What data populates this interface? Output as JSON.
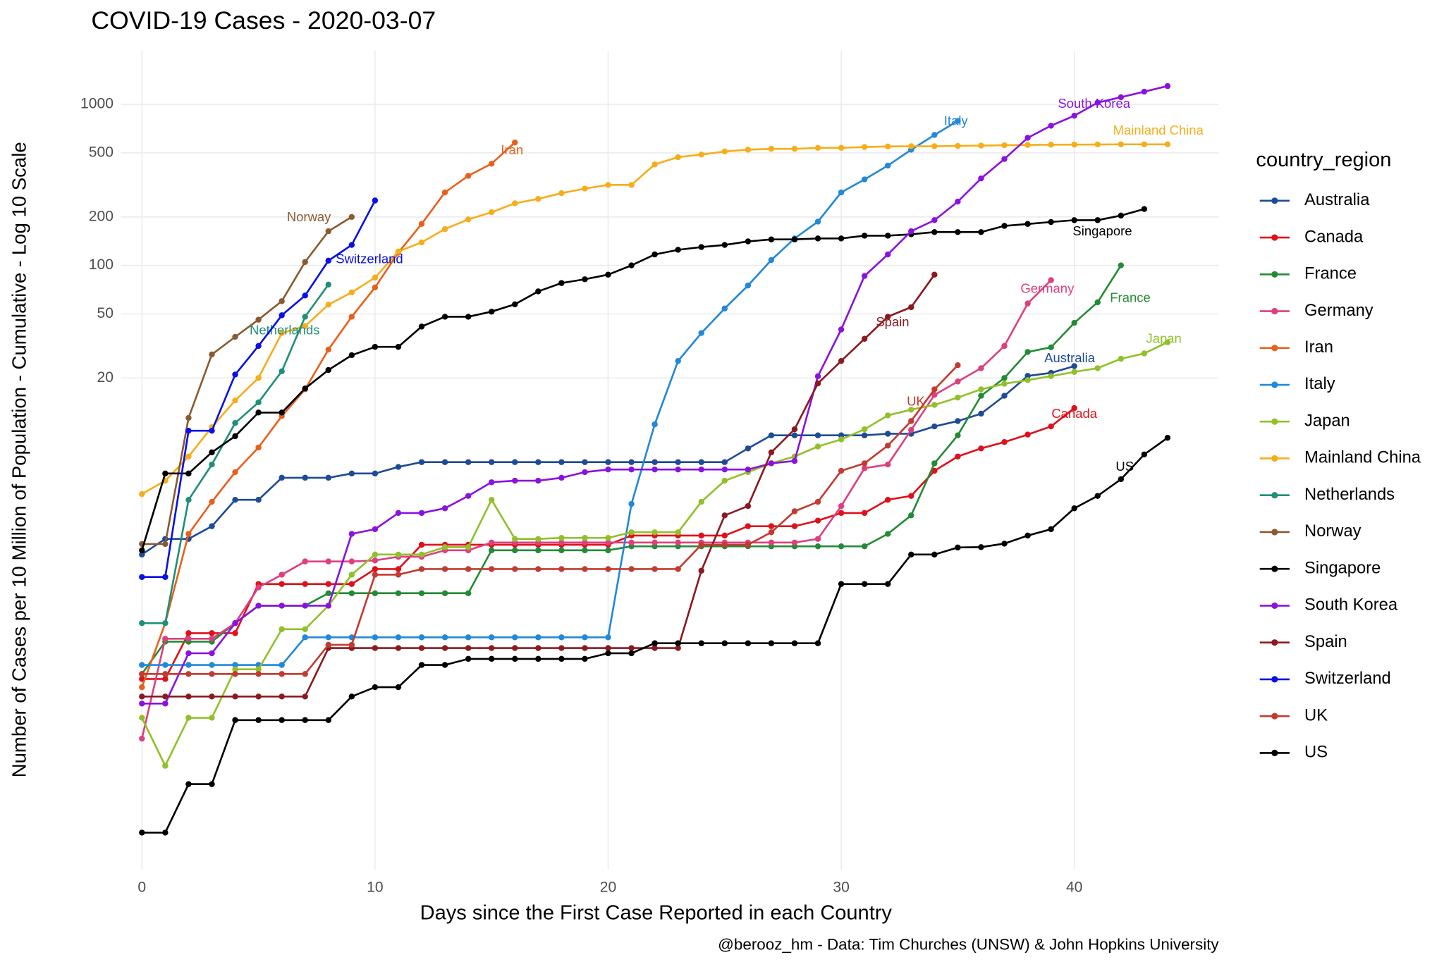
{
  "chart_data": {
    "type": "line",
    "title": "COVID-19 Cases - 2020-03-07",
    "x_label": "Days since the First Case Reported in each Country",
    "y_label": "Number of Cases per 10 Million of Population - Cumulative - Log 10 Scale",
    "caption": "@berooz_hm - Data: Tim Churches (UNSW) & John Hopkins University",
    "legend_title": "country_region",
    "legend": "right",
    "grid": true,
    "y_log": true,
    "xlim": [
      -0.9,
      46.2
    ],
    "xticks": [
      0,
      10,
      20,
      30,
      40
    ],
    "ylim": [
      0.0177,
      2150
    ],
    "yticks": [
      20,
      50,
      100,
      200,
      500,
      1000
    ],
    "x": [
      0,
      1,
      2,
      3,
      4,
      5,
      6,
      7,
      8,
      9,
      10,
      11,
      12,
      13,
      14,
      15,
      16,
      17,
      18,
      19,
      20,
      21,
      22,
      23,
      24,
      25,
      26,
      27,
      28,
      29,
      30,
      31,
      32,
      33,
      34,
      35,
      36,
      37,
      38,
      39,
      40,
      41,
      42,
      43,
      44
    ],
    "series": [
      {
        "name": "Australia",
        "color": "#1d4b96",
        "values": [
          1.6,
          2.0,
          2.0,
          2.4,
          3.5,
          3.5,
          4.8,
          4.8,
          4.8,
          5.1,
          5.1,
          5.6,
          6.0,
          6.0,
          6.0,
          6.0,
          6.0,
          6.0,
          6.0,
          6.0,
          6.0,
          6.0,
          6.0,
          6.0,
          6.0,
          6.0,
          7.3,
          8.8,
          8.8,
          8.8,
          8.8,
          8.8,
          9.0,
          9.0,
          10,
          10.8,
          12,
          15.5,
          20.6,
          21.5,
          23.7,
          null,
          null,
          null,
          null
        ]
      },
      {
        "name": "Canada",
        "color": "#e0101a",
        "values": [
          0.27,
          0.27,
          0.52,
          0.52,
          0.52,
          1.05,
          1.05,
          1.05,
          1.05,
          1.05,
          1.3,
          1.3,
          1.84,
          1.84,
          1.84,
          1.84,
          1.84,
          1.84,
          1.84,
          1.84,
          1.84,
          2.1,
          2.1,
          2.1,
          2.1,
          2.1,
          2.4,
          2.4,
          2.4,
          2.6,
          2.9,
          2.9,
          3.5,
          3.7,
          5.3,
          6.5,
          7.3,
          8.0,
          8.9,
          10,
          13,
          null,
          null,
          null,
          null
        ]
      },
      {
        "name": "France",
        "color": "#238b35",
        "values": [
          0.29,
          0.46,
          0.46,
          0.46,
          0.6,
          0.77,
          0.77,
          0.77,
          0.92,
          0.92,
          0.92,
          0.92,
          0.92,
          0.92,
          0.92,
          1.7,
          1.7,
          1.7,
          1.7,
          1.7,
          1.7,
          1.8,
          1.8,
          1.8,
          1.8,
          1.8,
          1.8,
          1.8,
          1.8,
          1.8,
          1.8,
          1.8,
          2.15,
          2.8,
          5.9,
          8.8,
          15.5,
          20,
          29,
          31,
          44,
          59,
          100,
          null,
          null
        ]
      },
      {
        "name": "Germany",
        "color": "#dd3f7f",
        "values": [
          0.115,
          0.48,
          0.48,
          0.48,
          0.6,
          1.0,
          1.2,
          1.45,
          1.45,
          1.45,
          1.47,
          1.55,
          1.55,
          1.7,
          1.7,
          1.9,
          1.9,
          1.9,
          1.9,
          1.9,
          1.9,
          1.9,
          1.9,
          1.9,
          1.9,
          1.9,
          1.9,
          1.9,
          1.9,
          2.0,
          3.2,
          5.5,
          5.8,
          9.5,
          15.7,
          19,
          23,
          31.6,
          58,
          81,
          null,
          null,
          null,
          null,
          null
        ]
      },
      {
        "name": "Iran",
        "color": "#e8601c",
        "values": [
          0.24,
          0.6,
          2.15,
          3.4,
          5.2,
          7.4,
          11.6,
          17,
          30,
          48,
          73,
          120,
          181,
          284,
          360,
          428,
          580,
          null,
          null,
          null,
          null,
          null,
          null,
          null,
          null,
          null,
          null,
          null,
          null,
          null,
          null,
          null,
          null,
          null,
          null,
          null,
          null,
          null,
          null,
          null,
          null,
          null,
          null,
          null,
          null
        ]
      },
      {
        "name": "Italy",
        "color": "#2288d8",
        "values": [
          0.33,
          0.33,
          0.33,
          0.33,
          0.33,
          0.33,
          0.33,
          0.49,
          0.49,
          0.49,
          0.49,
          0.49,
          0.49,
          0.49,
          0.49,
          0.49,
          0.49,
          0.49,
          0.49,
          0.49,
          0.49,
          3.3,
          10.3,
          25.5,
          38,
          54,
          75,
          108,
          147,
          187,
          284,
          342,
          417,
          523,
          646,
          790,
          null,
          null,
          null,
          null,
          null,
          null,
          null,
          null,
          null
        ]
      },
      {
        "name": "Japan",
        "color": "#92c02a",
        "values": [
          0.155,
          0.078,
          0.155,
          0.155,
          0.31,
          0.31,
          0.55,
          0.55,
          0.77,
          1.2,
          1.6,
          1.6,
          1.6,
          1.78,
          1.78,
          3.5,
          2.0,
          2.0,
          2.03,
          2.03,
          2.03,
          2.2,
          2.2,
          2.2,
          3.4,
          4.6,
          5.2,
          5.9,
          6.5,
          7.5,
          8.3,
          9.6,
          11.7,
          12.7,
          13.6,
          15.1,
          17,
          18.4,
          19.4,
          20.5,
          21.8,
          23,
          26.3,
          28.4,
          33.3
        ]
      },
      {
        "name": "Mainland China",
        "color": "#f7ad1a",
        "values": [
          3.8,
          4.6,
          6.5,
          9.9,
          14.5,
          20,
          38,
          42,
          57,
          68,
          84,
          122,
          139,
          168,
          193,
          214,
          243,
          259,
          281,
          300,
          316,
          316,
          424,
          470,
          488,
          510,
          523,
          530,
          530,
          537,
          537,
          544,
          548,
          550,
          550,
          552,
          555,
          558,
          560,
          562,
          563,
          564,
          565,
          565,
          565
        ]
      },
      {
        "name": "Netherlands",
        "color": "#1f8f7a",
        "values": [
          0.6,
          0.6,
          3.5,
          5.8,
          10.5,
          14.1,
          22,
          48,
          76,
          null,
          null,
          null,
          null,
          null,
          null,
          null,
          null,
          null,
          null,
          null,
          null,
          null,
          null,
          null,
          null,
          null,
          null,
          null,
          null,
          null,
          null,
          null,
          null,
          null,
          null,
          null,
          null,
          null,
          null,
          null,
          null,
          null,
          null,
          null,
          null
        ]
      },
      {
        "name": "Norway",
        "color": "#8a5a30",
        "values": [
          1.86,
          1.86,
          11.3,
          28,
          36,
          46,
          60,
          105,
          163,
          200,
          null,
          null,
          null,
          null,
          null,
          null,
          null,
          null,
          null,
          null,
          null,
          null,
          null,
          null,
          null,
          null,
          null,
          null,
          null,
          null,
          null,
          null,
          null,
          null,
          null,
          null,
          null,
          null,
          null,
          null,
          null,
          null,
          null,
          null,
          null
        ]
      },
      {
        "name": "Singapore",
        "color": "#000000",
        "values": [
          1.7,
          5.1,
          5.1,
          6.9,
          8.7,
          12.2,
          12.2,
          17.2,
          22.4,
          27.7,
          31.2,
          31.2,
          41.7,
          48,
          48,
          51.6,
          57.3,
          69,
          77.7,
          82,
          87.6,
          100,
          117,
          125,
          130,
          134,
          141,
          145,
          145,
          147,
          147,
          153,
          153,
          156,
          161,
          161,
          161,
          176,
          181,
          186,
          191,
          191,
          204,
          224,
          null
        ]
      },
      {
        "name": "South Korea",
        "color": "#8a12e0",
        "values": [
          0.19,
          0.19,
          0.39,
          0.39,
          0.6,
          0.77,
          0.77,
          0.77,
          0.77,
          2.15,
          2.3,
          2.9,
          2.9,
          3.1,
          3.7,
          4.5,
          4.6,
          4.6,
          4.8,
          5.2,
          5.4,
          5.4,
          5.4,
          5.4,
          5.4,
          5.4,
          5.4,
          5.9,
          6.1,
          20.5,
          40,
          86,
          117,
          163,
          191,
          249,
          347,
          458,
          620,
          737,
          851,
          1027,
          1108,
          1200,
          1300
        ]
      },
      {
        "name": "Spain",
        "color": "#8b1a20",
        "values": [
          0.21,
          0.21,
          0.21,
          0.21,
          0.21,
          0.21,
          0.21,
          0.21,
          0.42,
          0.42,
          0.42,
          0.42,
          0.42,
          0.42,
          0.42,
          0.42,
          0.42,
          0.42,
          0.42,
          0.42,
          0.42,
          0.42,
          0.42,
          0.42,
          1.27,
          2.8,
          3.2,
          6.9,
          9.6,
          18.5,
          25.5,
          35,
          48,
          55,
          87.6,
          null,
          null,
          null,
          null,
          null,
          null,
          null,
          null,
          null,
          null
        ]
      },
      {
        "name": "Switzerland",
        "color": "#0a10e6",
        "values": [
          1.16,
          1.16,
          9.4,
          9.4,
          21,
          31.6,
          49,
          65,
          107,
          134,
          253,
          null,
          null,
          null,
          null,
          null,
          null,
          null,
          null,
          null,
          null,
          null,
          null,
          null,
          null,
          null,
          null,
          null,
          null,
          null,
          null,
          null,
          null,
          null,
          null,
          null,
          null,
          null,
          null,
          null,
          null,
          null,
          null,
          null,
          null
        ]
      },
      {
        "name": "UK",
        "color": "#c23b30",
        "values": [
          0.29,
          0.29,
          0.29,
          0.29,
          0.29,
          0.29,
          0.29,
          0.29,
          0.44,
          0.44,
          1.2,
          1.2,
          1.3,
          1.3,
          1.3,
          1.3,
          1.3,
          1.3,
          1.3,
          1.3,
          1.3,
          1.3,
          1.3,
          1.3,
          1.84,
          1.84,
          1.84,
          2.2,
          2.97,
          3.4,
          5.3,
          5.9,
          7.6,
          10.8,
          17,
          24,
          null,
          null,
          null,
          null,
          null,
          null,
          null,
          null,
          null
        ]
      },
      {
        "name": "US",
        "color": "#000000",
        "values": [
          0.03,
          0.03,
          0.06,
          0.06,
          0.15,
          0.15,
          0.15,
          0.15,
          0.15,
          0.21,
          0.24,
          0.24,
          0.33,
          0.33,
          0.36,
          0.36,
          0.36,
          0.36,
          0.36,
          0.36,
          0.39,
          0.39,
          0.45,
          0.45,
          0.45,
          0.45,
          0.45,
          0.45,
          0.45,
          0.45,
          1.05,
          1.05,
          1.05,
          1.6,
          1.6,
          1.77,
          1.78,
          1.87,
          2.1,
          2.3,
          3.1,
          3.7,
          4.7,
          6.7,
          8.5
        ]
      }
    ]
  }
}
